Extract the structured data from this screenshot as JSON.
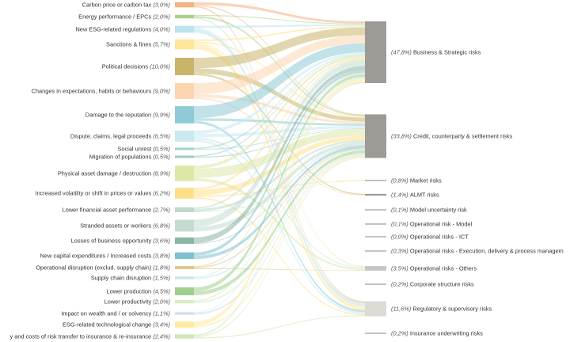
{
  "sources": [
    {
      "id": "carbon",
      "label": "Carbon price or carbon tax",
      "pct": "(3,0%)",
      "value": 3.0,
      "color": "#f4b183"
    },
    {
      "id": "energy",
      "label": "Energy performance / EPCs",
      "pct": "(2,0%)",
      "value": 2.0,
      "color": "#a9d18e"
    },
    {
      "id": "esgreg",
      "label": "New ESG-related regulations",
      "pct": "(4,0%)",
      "value": 4.0,
      "color": "#bde3ec"
    },
    {
      "id": "sanctions",
      "label": "Sanctions & fines",
      "pct": "(5,7%)",
      "value": 5.7,
      "color": "#ffe699"
    },
    {
      "id": "political",
      "label": "Political decisions",
      "pct": "(10,0%)",
      "value": 10.0,
      "color": "#c9b56a"
    },
    {
      "id": "changes",
      "label": "Changes in expectations, habits or behaviours",
      "pct": "(9,0%)",
      "value": 9.0,
      "color": "#fbd5b0"
    },
    {
      "id": "reputation",
      "label": "Damage to the reputation",
      "pct": "(9,9%)",
      "value": 9.9,
      "color": "#8ecbd6"
    },
    {
      "id": "dispute",
      "label": "Dispute, claims, legal proceeds",
      "pct": "(6,5%)",
      "value": 6.5,
      "color": "#c9e9ee"
    },
    {
      "id": "unrest",
      "label": "Social unrest",
      "pct": "(0,5%)",
      "value": 0.5,
      "color": "#9ed3c9"
    },
    {
      "id": "migration",
      "label": "Migration of populations",
      "pct": "(0,5%)",
      "value": 0.5,
      "color": "#a6c9c1"
    },
    {
      "id": "physical",
      "label": "Physical asset damage / destruction",
      "pct": "(8,9%)",
      "value": 8.9,
      "color": "#dde8a7"
    },
    {
      "id": "volatility",
      "label": "Increased volatility or shift in prices or values",
      "pct": "(6,2%)",
      "value": 6.2,
      "color": "#ffe08a"
    },
    {
      "id": "lowerfin",
      "label": "Lower financial asset performance",
      "pct": "(2,7%)",
      "value": 2.7,
      "color": "#bfd8c9"
    },
    {
      "id": "stranded",
      "label": "Stranded assets or workers",
      "pct": "(6,8%)",
      "value": 6.8,
      "color": "#c5ddd0"
    },
    {
      "id": "losses",
      "label": "Losses of business opportunity",
      "pct": "(3,6%)",
      "value": 3.6,
      "color": "#8ab5a5"
    },
    {
      "id": "capex",
      "label": "New capital expenditures / Increased costs",
      "pct": "(3,8%)",
      "value": 3.8,
      "color": "#7fc1cf"
    },
    {
      "id": "opdisrupt",
      "label": "Operational disruption (exclud. supply chain)",
      "pct": "(1,8%)",
      "value": 1.8,
      "color": "#dcc98a"
    },
    {
      "id": "supply",
      "label": "Supply chain disruption",
      "pct": "(1,5%)",
      "value": 1.5,
      "color": "#c8e6e6"
    },
    {
      "id": "lowerprod",
      "label": "Lower production",
      "pct": "(4,5%)",
      "value": 4.5,
      "color": "#9fcf8a"
    },
    {
      "id": "lowerprodv",
      "label": "Lower productivity",
      "pct": "(2,0%)",
      "value": 2.0,
      "color": "#d7edc2"
    },
    {
      "id": "wealth",
      "label": "Impact on wealth and / or solvency",
      "pct": "(1,1%)",
      "value": 1.1,
      "color": "#c9dcec"
    },
    {
      "id": "esgtech",
      "label": "ESG-related technological change",
      "pct": "(3,4%)",
      "value": 3.4,
      "color": "#ffeaa0"
    },
    {
      "id": "transfer",
      "label": "y and costs of risk transfer to insurance & re-insurance",
      "pct": "(2,4%)",
      "value": 2.4,
      "color": "#cfe8b8"
    }
  ],
  "targets": [
    {
      "id": "business",
      "label": "Business & Strategic risks",
      "pct": "(47,8%)",
      "value": 47.8,
      "color": "#9e9a96"
    },
    {
      "id": "credit",
      "label": "Credit, counterparty & settlement risks",
      "pct": "(33,8%)",
      "value": 33.8,
      "color": "#9e9a96"
    },
    {
      "id": "market",
      "label": "Market risks",
      "pct": "(0,8%)",
      "value": 0.8,
      "color": "#9e9a96"
    },
    {
      "id": "almt",
      "label": "ALMT risks",
      "pct": "(1,4%)",
      "value": 1.4,
      "color": "#9e9a96"
    },
    {
      "id": "model",
      "label": "Model uncertainty risk",
      "pct": "(0,1%)",
      "value": 0.1,
      "color": "#9e9a96"
    },
    {
      "id": "opmodel",
      "label": "Operational risk - Model",
      "pct": "(0,1%)",
      "value": 0.1,
      "color": "#9e9a96"
    },
    {
      "id": "opict",
      "label": "Operational risks - ICT",
      "pct": "(0,0%)",
      "value": 0.0,
      "color": "#9e9a96"
    },
    {
      "id": "opexec",
      "label": "Operational risks - Execution, delivery & process managem",
      "pct": "(0,3%)",
      "value": 0.3,
      "color": "#9e9a96"
    },
    {
      "id": "opother",
      "label": "Operational risks - Others",
      "pct": "(3,5%)",
      "value": 3.5,
      "color": "#c8c5c2"
    },
    {
      "id": "corp",
      "label": "Corporate structure risks",
      "pct": "(0,2%)",
      "value": 0.2,
      "color": "#9e9a96"
    },
    {
      "id": "regulatory",
      "label": "Regulatory & supervisory risks",
      "pct": "(11,6%)",
      "value": 11.6,
      "color": "#dedad6"
    },
    {
      "id": "insurance",
      "label": "Insurance underwriting risks",
      "pct": "(0,2%)",
      "value": 0.2,
      "color": "#9e9a96"
    }
  ]
}
